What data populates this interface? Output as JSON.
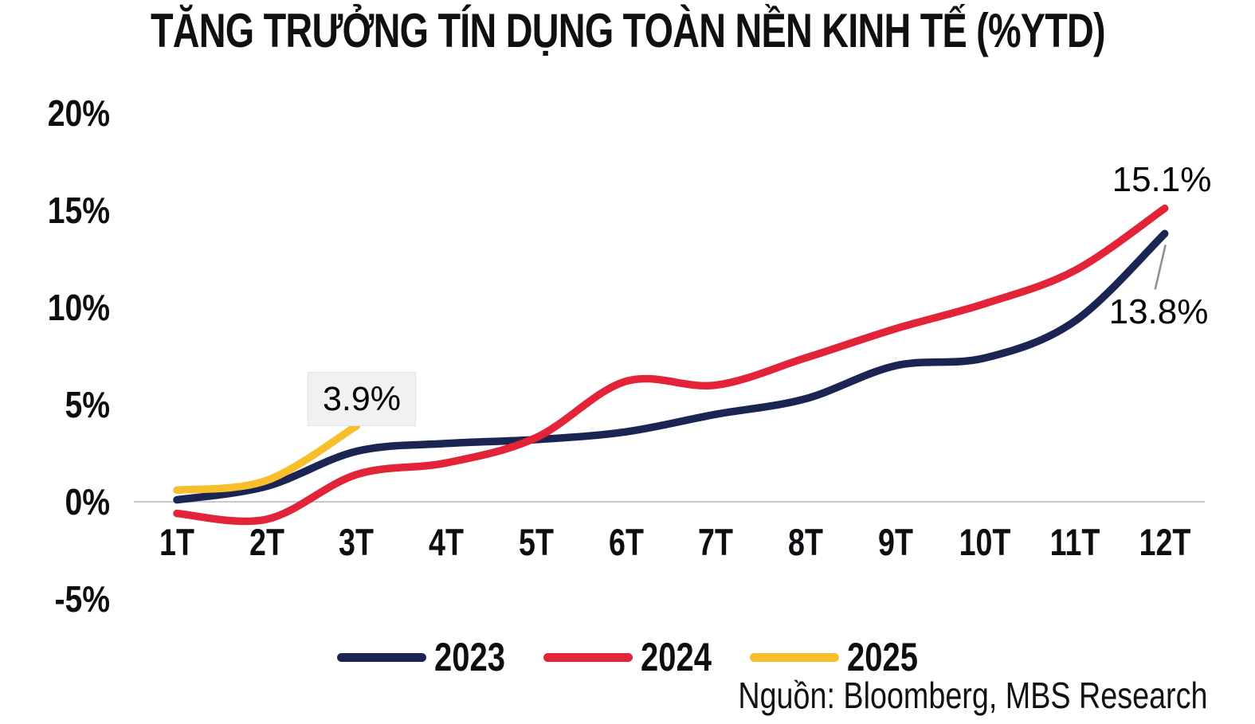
{
  "title": "TĂNG TRƯỞNG TÍN DỤNG TOÀN NỀN KINH TẾ (%YTD)",
  "source": "Nguồn: Bloomberg, MBS Research",
  "colors": {
    "navy_2023": "#1b2554",
    "red_2024": "#e32438",
    "yellow_2025": "#f7bf2b",
    "gridline": "#c9c9cc",
    "annotation_leader": "#8f8f92",
    "annotation_box_bg": "#f1f1f3",
    "text": "#0d0d0f"
  },
  "chart_data": {
    "type": "line",
    "title": "TĂNG TRƯỞNG TÍN DỤNG TOÀN NỀN KINH TẾ (%YTD)",
    "xlabel": "",
    "ylabel": "",
    "categories": [
      "1T",
      "2T",
      "3T",
      "4T",
      "5T",
      "6T",
      "7T",
      "8T",
      "9T",
      "10T",
      "11T",
      "12T"
    ],
    "y_axis": {
      "ticks": [
        "20%",
        "15%",
        "10%",
        "5%",
        "0%",
        "-5%"
      ],
      "tick_values": [
        20,
        15,
        10,
        5,
        0,
        -5
      ],
      "ylim": [
        -5,
        20
      ],
      "grid": "zero-line-only"
    },
    "series": [
      {
        "name": "2023",
        "color": "#1b2554",
        "values": [
          0.1,
          0.8,
          2.6,
          3.0,
          3.2,
          3.6,
          4.5,
          5.3,
          7.0,
          7.4,
          9.3,
          13.8
        ]
      },
      {
        "name": "2024",
        "color": "#e32438",
        "values": [
          -0.6,
          -0.9,
          1.4,
          2.0,
          3.3,
          6.2,
          6.0,
          7.4,
          8.9,
          10.2,
          11.9,
          15.1
        ]
      },
      {
        "name": "2025",
        "color": "#f7bf2b",
        "values": [
          0.6,
          1.1,
          3.9
        ]
      }
    ],
    "annotations": {
      "end_2024": "15.1%",
      "end_2023": "13.8%",
      "end_2025": "3.9%"
    },
    "legend": {
      "position": "bottom",
      "entries": [
        "2023",
        "2024",
        "2025"
      ]
    }
  }
}
